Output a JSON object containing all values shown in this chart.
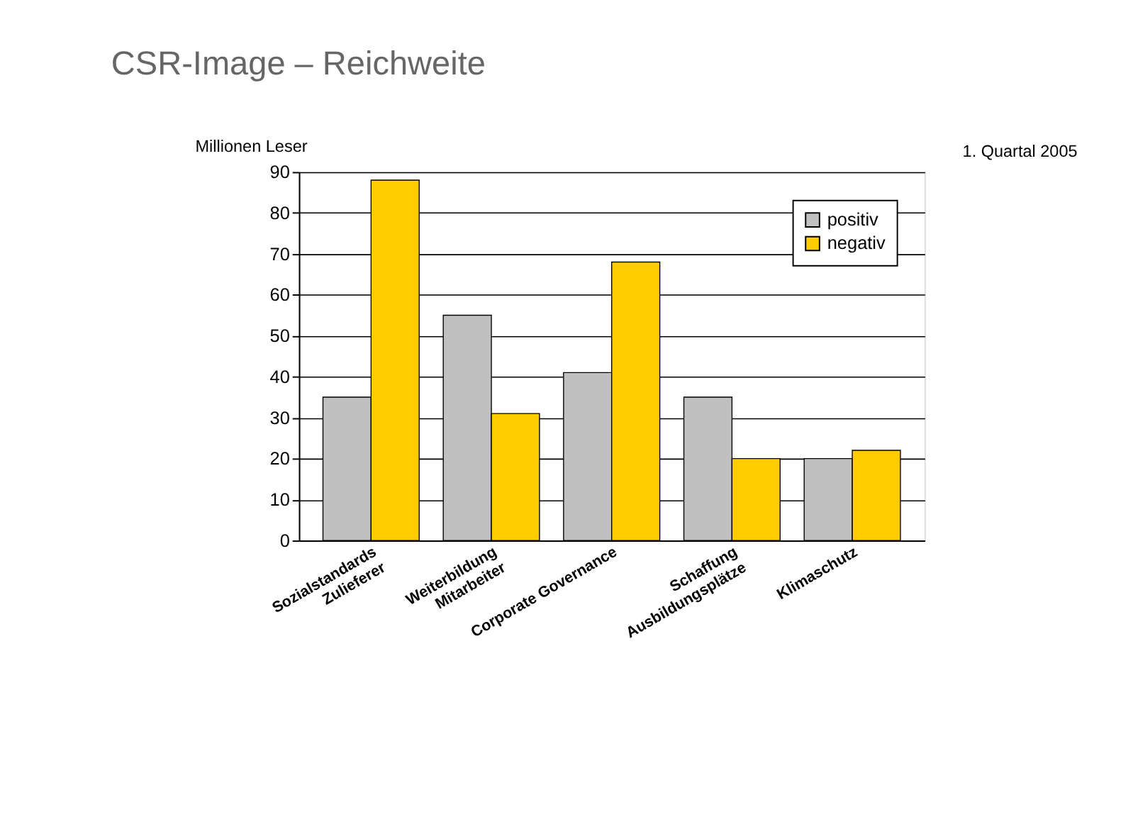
{
  "chart_data": {
    "type": "bar",
    "title": "CSR-Image – Reichweite",
    "ylabel": "Millionen Leser",
    "annotations": [
      "1. Quartal 2005"
    ],
    "categories": [
      "Sozialstandards\nZulieferer",
      "Weiterbildung\nMitarbeiter",
      "Corporate Governance",
      "Schaffung\nAusbildungsplätze",
      "Klimaschutz"
    ],
    "series": [
      {
        "name": "positiv",
        "color": "#c0c0c0",
        "values": [
          35,
          55,
          41,
          35,
          20
        ]
      },
      {
        "name": "negativ",
        "color": "#ffcc00",
        "values": [
          88,
          31,
          68,
          20,
          22
        ]
      }
    ],
    "ylim": [
      0,
      90
    ],
    "yticks": [
      0,
      10,
      20,
      30,
      40,
      50,
      60,
      70,
      80,
      90
    ],
    "grid": "y",
    "legend": "top right"
  }
}
